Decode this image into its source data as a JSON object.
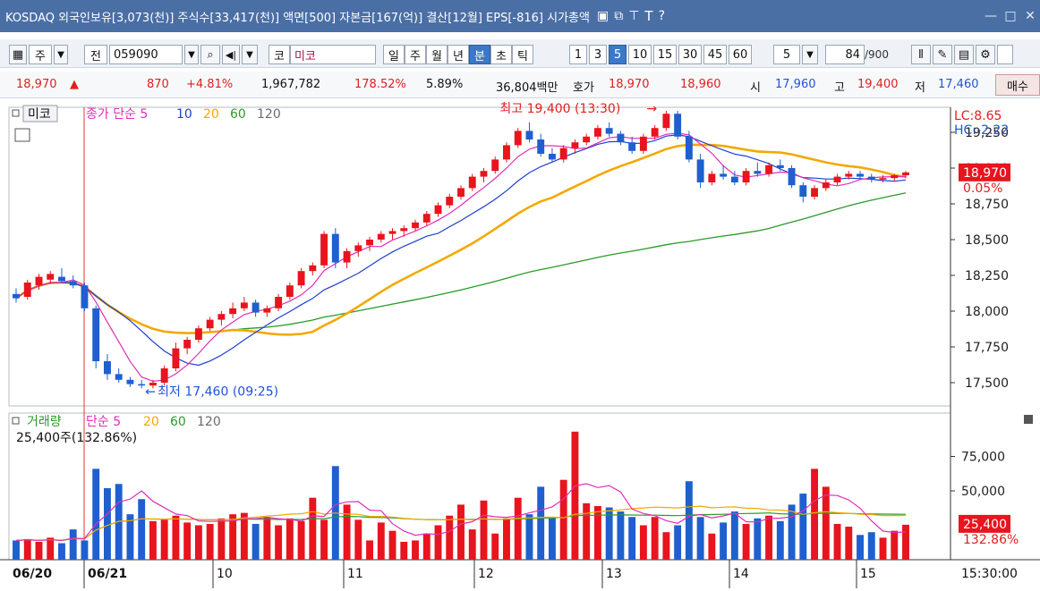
{
  "window": {
    "title": "KOSDAQ 외국인보유[3,073(천)] 주식수[33,417(천)] 액면[500] 자본금[167(억)] 결산[12월] EPS[-816] 시가총액",
    "controls": [
      "minimize-icon",
      "maximize-icon",
      "close-icon"
    ]
  },
  "toolbar": {
    "freq_label": "주",
    "prev_label": "전",
    "code_value": "059090",
    "market_label": "코",
    "stock_name": "미코",
    "period_buttons": [
      "일",
      "주",
      "월",
      "년",
      "분",
      "초",
      "틱"
    ],
    "selected_period": "분",
    "interval_buttons": [
      "1",
      "3",
      "5",
      "10",
      "15",
      "30",
      "45",
      "60"
    ],
    "selected_interval": "5",
    "interval_select": "5",
    "count_value": "84",
    "count_total": "/900"
  },
  "quote": {
    "price": "18,970",
    "arrow": "▲",
    "change": "870",
    "change_pct": "+4.81%",
    "volume": "1,967,782",
    "volume_ratio": "178.52%",
    "turnover": "5.89%",
    "amount": "36,804백만",
    "hoga_label": "호가",
    "ask": "18,970",
    "bid": "18,960",
    "open_label": "시",
    "open": "17,960",
    "high_label": "고",
    "high": "19,400",
    "low_label": "저",
    "low": "17,460",
    "buy_label": "매수"
  },
  "price_panel": {
    "legend_name": "미코",
    "legend_ma_label": "종가 단순",
    "ma_periods": [
      "5",
      "10",
      "20",
      "60",
      "120"
    ],
    "lc_label": "LC:8.65",
    "hc_label": "HC:-2.22",
    "current_price_tag": "18,970",
    "current_pct_tag": "0.05%",
    "high_annotation": "최고 19,400 (13:30)",
    "low_annotation": "최저 17,460 (09:25)",
    "y_ticks": [
      "19,250",
      "19,000",
      "18,750",
      "18,500",
      "18,250",
      "18,000",
      "17,750",
      "17,500"
    ]
  },
  "volume_panel": {
    "legend_name": "거래량",
    "legend_ma_label": "단순",
    "ma_periods": [
      "5",
      "20",
      "60",
      "120"
    ],
    "current_info": "25,400주(132.86%)",
    "y_ticks": [
      "75,000",
      "50,000"
    ],
    "current_volume_tag": "25,400",
    "current_pct_tag": "132.86%"
  },
  "x_axis": {
    "date_labels": [
      "06/20",
      "06/21"
    ],
    "hour_labels": [
      "10",
      "11",
      "12",
      "13",
      "14",
      "15"
    ],
    "time_readout": "15:30:00"
  },
  "colors": {
    "up": "#e8141e",
    "down": "#1f5fd0",
    "ma5": "#e02fb6",
    "ma10": "#1d3fd0",
    "ma20": "#f2a900",
    "ma60": "#2b9a2b",
    "ma120": "#6a6a6a"
  },
  "chart_data": {
    "type": "candlestick",
    "y_range": [
      17400,
      19400
    ],
    "candles": [
      [
        18120,
        18160,
        18060,
        18090
      ],
      [
        18100,
        18220,
        18080,
        18200
      ],
      [
        18180,
        18260,
        18150,
        18240
      ],
      [
        18220,
        18280,
        18190,
        18260
      ],
      [
        18240,
        18300,
        18200,
        18210
      ],
      [
        18210,
        18250,
        18160,
        18180
      ],
      [
        18180,
        18200,
        18000,
        18020
      ],
      [
        18020,
        18040,
        17600,
        17650
      ],
      [
        17650,
        17700,
        17520,
        17560
      ],
      [
        17560,
        17600,
        17500,
        17520
      ],
      [
        17520,
        17540,
        17470,
        17490
      ],
      [
        17490,
        17520,
        17460,
        17480
      ],
      [
        17480,
        17520,
        17460,
        17500
      ],
      [
        17500,
        17620,
        17480,
        17600
      ],
      [
        17600,
        17780,
        17580,
        17740
      ],
      [
        17740,
        17820,
        17700,
        17800
      ],
      [
        17800,
        17900,
        17780,
        17880
      ],
      [
        17880,
        17960,
        17860,
        17940
      ],
      [
        17940,
        18000,
        17900,
        17980
      ],
      [
        17980,
        18060,
        17950,
        18020
      ],
      [
        18020,
        18100,
        18000,
        18060
      ],
      [
        18060,
        18080,
        17960,
        17990
      ],
      [
        17990,
        18040,
        17960,
        18020
      ],
      [
        18020,
        18120,
        18000,
        18100
      ],
      [
        18100,
        18200,
        18080,
        18180
      ],
      [
        18180,
        18300,
        18160,
        18280
      ],
      [
        18280,
        18340,
        18250,
        18320
      ],
      [
        18320,
        18560,
        18300,
        18540
      ],
      [
        18540,
        18580,
        18300,
        18340
      ],
      [
        18340,
        18440,
        18300,
        18420
      ],
      [
        18420,
        18480,
        18380,
        18460
      ],
      [
        18460,
        18520,
        18420,
        18500
      ],
      [
        18500,
        18560,
        18480,
        18540
      ],
      [
        18540,
        18580,
        18500,
        18560
      ],
      [
        18560,
        18600,
        18520,
        18580
      ],
      [
        18580,
        18640,
        18560,
        18620
      ],
      [
        18620,
        18700,
        18600,
        18680
      ],
      [
        18680,
        18760,
        18660,
        18740
      ],
      [
        18740,
        18820,
        18720,
        18800
      ],
      [
        18800,
        18880,
        18780,
        18860
      ],
      [
        18860,
        18960,
        18840,
        18940
      ],
      [
        18940,
        19000,
        18900,
        18980
      ],
      [
        18980,
        19080,
        18960,
        19060
      ],
      [
        19060,
        19180,
        19040,
        19160
      ],
      [
        19160,
        19280,
        19140,
        19260
      ],
      [
        19260,
        19320,
        19180,
        19200
      ],
      [
        19200,
        19240,
        19080,
        19100
      ],
      [
        19100,
        19140,
        19040,
        19060
      ],
      [
        19060,
        19160,
        19040,
        19140
      ],
      [
        19140,
        19200,
        19100,
        19180
      ],
      [
        19180,
        19240,
        19160,
        19220
      ],
      [
        19220,
        19300,
        19200,
        19280
      ],
      [
        19280,
        19320,
        19220,
        19240
      ],
      [
        19240,
        19260,
        19160,
        19180
      ],
      [
        19180,
        19220,
        19100,
        19120
      ],
      [
        19120,
        19240,
        19100,
        19220
      ],
      [
        19220,
        19300,
        19200,
        19280
      ],
      [
        19280,
        19400,
        19260,
        19380
      ],
      [
        19380,
        19400,
        19200,
        19220
      ],
      [
        19220,
        19260,
        19040,
        19060
      ],
      [
        19060,
        19100,
        18860,
        18900
      ],
      [
        18900,
        18980,
        18880,
        18960
      ],
      [
        18960,
        19020,
        18920,
        18940
      ],
      [
        18940,
        18980,
        18880,
        18900
      ],
      [
        18900,
        19000,
        18880,
        18980
      ],
      [
        18980,
        19040,
        18940,
        18960
      ],
      [
        18960,
        19040,
        18940,
        19020
      ],
      [
        19020,
        19060,
        18980,
        19000
      ],
      [
        19000,
        19020,
        18860,
        18880
      ],
      [
        18880,
        18900,
        18760,
        18800
      ],
      [
        18800,
        18880,
        18780,
        18860
      ],
      [
        18860,
        18920,
        18840,
        18900
      ],
      [
        18900,
        18960,
        18880,
        18940
      ],
      [
        18940,
        18980,
        18920,
        18960
      ],
      [
        18960,
        18980,
        18920,
        18940
      ],
      [
        18940,
        18960,
        18900,
        18920
      ],
      [
        18920,
        18950,
        18900,
        18930
      ],
      [
        18930,
        18960,
        18910,
        18950
      ],
      [
        18950,
        18980,
        18930,
        18970
      ]
    ],
    "volume": [
      14000,
      15000,
      13000,
      16000,
      12000,
      22000,
      14000,
      66000,
      52000,
      55000,
      33000,
      44000,
      28000,
      29000,
      32000,
      27000,
      25000,
      26000,
      30000,
      33000,
      34000,
      26000,
      31000,
      25000,
      30000,
      28000,
      45000,
      29000,
      68000,
      40000,
      29000,
      14000,
      27000,
      21000,
      13000,
      14000,
      19000,
      25000,
      32000,
      40000,
      22000,
      43000,
      19000,
      30000,
      45000,
      33000,
      53000,
      31000,
      58000,
      93000,
      41000,
      39000,
      38000,
      35000,
      31000,
      25000,
      31000,
      20000,
      25000,
      57000,
      31000,
      19000,
      27000,
      35000,
      26000,
      30000,
      32000,
      28000,
      40000,
      48000,
      66000,
      53000,
      26000,
      24000,
      18000,
      20000,
      16000,
      21000,
      25400
    ]
  }
}
